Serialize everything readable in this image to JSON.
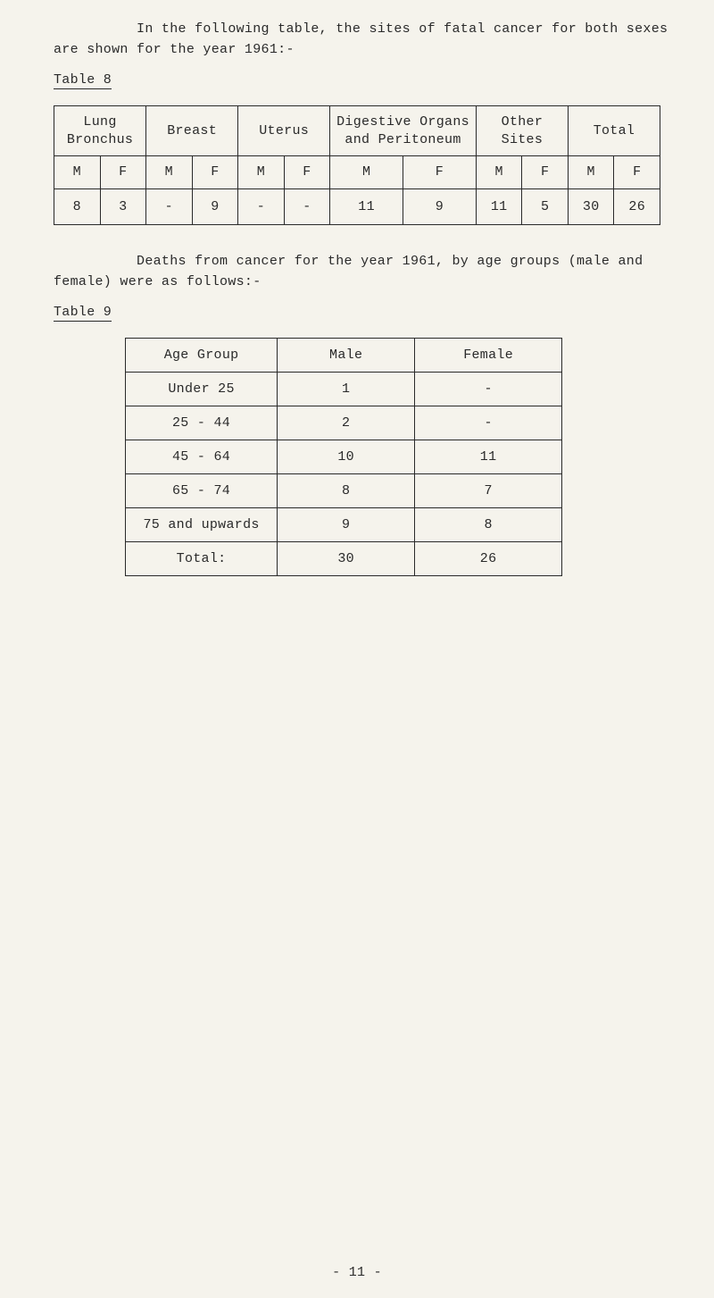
{
  "intro_para": "In the following table, the sites of fatal cancer for both sexes are shown for the year 1961:-",
  "table8_label": "Table 8",
  "table8": {
    "groups": [
      "Lung Bronchus",
      "Breast",
      "Uterus",
      "Digestive Organs and Peritoneum",
      "Other Sites",
      "Total"
    ],
    "mf_labels": [
      "M",
      "F",
      "M",
      "F",
      "M",
      "F",
      "M",
      "F",
      "M",
      "F",
      "M",
      "F"
    ],
    "values": [
      "8",
      "3",
      "-",
      "9",
      "-",
      "-",
      "11",
      "9",
      "11",
      "5",
      "30",
      "26"
    ]
  },
  "mid_para": "Deaths from cancer for the year 1961, by age groups (male and female) were as follows:-",
  "table9_label": "Table 9",
  "table9": {
    "head": [
      "Age Group",
      "Male",
      "Female"
    ],
    "rows": [
      [
        "Under 25",
        "1",
        "-"
      ],
      [
        "25 - 44",
        "2",
        "-"
      ],
      [
        "45 - 64",
        "10",
        "11"
      ],
      [
        "65 - 74",
        "8",
        "7"
      ],
      [
        "75 and upwards",
        "9",
        "8"
      ],
      [
        "Total:",
        "30",
        "26"
      ]
    ]
  },
  "page_number": "- 11 -"
}
